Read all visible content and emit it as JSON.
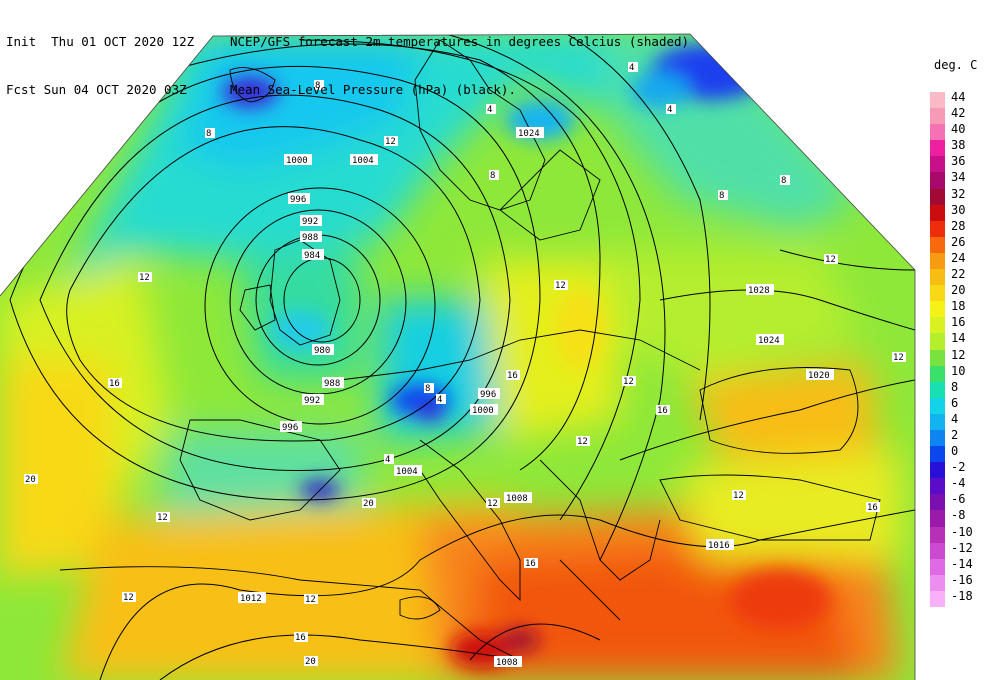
{
  "header": {
    "line1_left": "Init  Thu 01 OCT 2020 12Z",
    "line1_right": "NCEP/GFS forecast 2m temperatures in degrees Celcius (shaded)",
    "line2_left": "Fcst Sun 04 OCT 2020 03Z",
    "line2_right": "Mean Sea-Level Pressure (hPa) (black)."
  },
  "legend": {
    "unit": "deg. C",
    "entries": [
      {
        "label": "44",
        "color": "#f9b9c6"
      },
      {
        "label": "42",
        "color": "#f79ab7"
      },
      {
        "label": "40",
        "color": "#f472b4"
      },
      {
        "label": "38",
        "color": "#ee1fa0"
      },
      {
        "label": "36",
        "color": "#c8108a"
      },
      {
        "label": "34",
        "color": "#a80a6c"
      },
      {
        "label": "32",
        "color": "#a10a32"
      },
      {
        "label": "30",
        "color": "#cc0d10"
      },
      {
        "label": "28",
        "color": "#ee2e0a"
      },
      {
        "label": "26",
        "color": "#f7690c"
      },
      {
        "label": "24",
        "color": "#f79c12"
      },
      {
        "label": "22",
        "color": "#f8bd12"
      },
      {
        "label": "20",
        "color": "#f8d915"
      },
      {
        "label": "18",
        "color": "#f6f217"
      },
      {
        "label": "16",
        "color": "#d8f121"
      },
      {
        "label": "14",
        "color": "#b5ee2d"
      },
      {
        "label": "12",
        "color": "#7ae23e"
      },
      {
        "label": "10",
        "color": "#39e06a"
      },
      {
        "label": "8",
        "color": "#18e0b0"
      },
      {
        "label": "6",
        "color": "#12d3e8"
      },
      {
        "label": "4",
        "color": "#12b4f0"
      },
      {
        "label": "2",
        "color": "#0e84f0"
      },
      {
        "label": "0",
        "color": "#0a48ee"
      },
      {
        "label": "-2",
        "color": "#2810d8"
      },
      {
        "label": "-4",
        "color": "#5a0cc8"
      },
      {
        "label": "-6",
        "color": "#7a10b0"
      },
      {
        "label": "-8",
        "color": "#9a1aaa"
      },
      {
        "label": "-10",
        "color": "#b630b8"
      },
      {
        "label": "-12",
        "color": "#cc4ad2"
      },
      {
        "label": "-14",
        "color": "#de6ae6"
      },
      {
        "label": "-16",
        "color": "#ec8ef0"
      },
      {
        "label": "-18",
        "color": "#f8b0f8"
      }
    ]
  },
  "map_data": {
    "isobar_labels": [
      "1000",
      "1004",
      "996",
      "992",
      "988",
      "984",
      "980",
      "988",
      "992",
      "996",
      "1000",
      "1004",
      "1008",
      "1012",
      "1016",
      "1020",
      "1024",
      "1024",
      "1028",
      "1008",
      "996"
    ],
    "temp_labels": [
      "8",
      "8",
      "12",
      "8",
      "4",
      "4",
      "4",
      "8",
      "12",
      "12",
      "16",
      "12",
      "20",
      "12",
      "16",
      "12",
      "16",
      "20",
      "12",
      "8",
      "4",
      "4",
      "12",
      "16",
      "12",
      "12",
      "16",
      "16",
      "20",
      "12",
      "12",
      "8"
    ]
  }
}
